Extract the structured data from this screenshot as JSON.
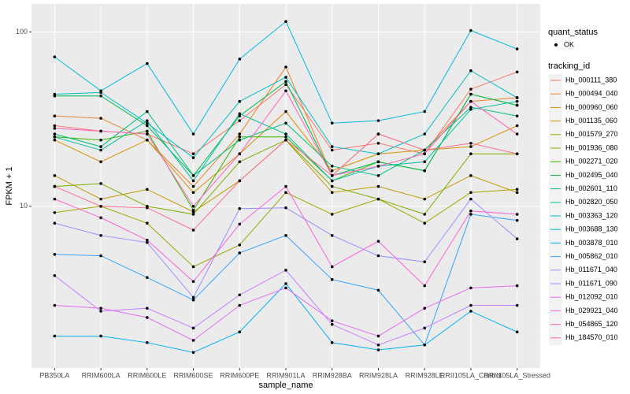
{
  "chart_data": {
    "type": "line",
    "x_label": "sample_name",
    "y_label": "FPKM + 1",
    "log_y": true,
    "grid": true,
    "categories": [
      "PB350LA",
      "RRIM600LA",
      "RRIM600LE",
      "RRIM600SE",
      "RRIM600PE",
      "RRIM901LA",
      "RRIM928BA",
      "RRIM928LA",
      "RRIM928LE",
      "RRII105LA_Control",
      "RRII105LA_Stressed"
    ],
    "ylim": [
      1.18,
      145
    ],
    "yticks": [
      10,
      100
    ],
    "shape_legend_title": "quant_status",
    "shape_legend_labels": [
      "OK"
    ],
    "legend_title": "tracking_id",
    "series": [
      {
        "name": "Hb_000111_380",
        "color": "#F8766D",
        "values": [
          29,
          27,
          26,
          20,
          31,
          50,
          21,
          23,
          20,
          47,
          59
        ]
      },
      {
        "name": "Hb_000494_040",
        "color": "#EA8331",
        "values": [
          33,
          32,
          24,
          13,
          26,
          63,
          15,
          26,
          21,
          40,
          42
        ]
      },
      {
        "name": "Hb_000960_060",
        "color": "#D89000",
        "values": [
          24,
          18,
          24,
          12,
          20,
          35,
          16,
          20,
          21,
          22,
          29
        ]
      },
      {
        "name": "Hb_001135_060",
        "color": "#C09B00",
        "values": [
          15,
          11,
          12.5,
          9.3,
          14,
          24,
          12,
          13,
          11,
          15,
          12
        ]
      },
      {
        "name": "Hb_001579_270",
        "color": "#A3A500",
        "values": [
          9.2,
          10,
          8,
          4.5,
          6,
          12,
          9,
          11,
          8,
          12,
          12.5
        ]
      },
      {
        "name": "Hb_001936_080",
        "color": "#7CAE00",
        "values": [
          13,
          13.5,
          10,
          9,
          18,
          24,
          13,
          11,
          9,
          20,
          20
        ]
      },
      {
        "name": "Hb_002271_020",
        "color": "#39B600",
        "values": [
          25,
          24,
          27,
          9.5,
          25,
          25,
          14,
          18,
          16,
          44,
          38
        ]
      },
      {
        "name": "Hb_002495_040",
        "color": "#00BB4E",
        "values": [
          43,
          43,
          29,
          15,
          33,
          52,
          15,
          18,
          16,
          44,
          38
        ]
      },
      {
        "name": "Hb_002601_110",
        "color": "#00BF7D",
        "values": [
          26,
          22,
          35,
          15,
          24,
          30,
          17,
          15,
          21,
          37,
          33
        ]
      },
      {
        "name": "Hb_002820_050",
        "color": "#00C1A3",
        "values": [
          25,
          21,
          31,
          14,
          34,
          26,
          14,
          17,
          18,
          36,
          40
        ]
      },
      {
        "name": "Hb_003363_120",
        "color": "#00BFC4",
        "values": [
          44,
          45,
          30,
          19,
          40,
          55,
          22,
          20,
          26,
          60,
          42
        ]
      },
      {
        "name": "Hb_003688_130",
        "color": "#00BAE0",
        "values": [
          72,
          46,
          66,
          26,
          70,
          115,
          30,
          31,
          35,
          102,
          80
        ]
      },
      {
        "name": "Hb_003878_010",
        "color": "#00B0F6",
        "values": [
          1.8,
          1.8,
          1.65,
          1.45,
          1.9,
          3.6,
          1.65,
          1.5,
          1.6,
          2.5,
          1.9
        ]
      },
      {
        "name": "Hb_005862_010",
        "color": "#35A2FF",
        "values": [
          5.3,
          5.2,
          3.9,
          2.9,
          5.4,
          6.8,
          3.8,
          3.3,
          1.6,
          9,
          8.3
        ]
      },
      {
        "name": "Hb_011671_040",
        "color": "#9590FF",
        "values": [
          8,
          6.8,
          6.2,
          3,
          9.7,
          9.8,
          6.8,
          5.2,
          4.8,
          11,
          6.5
        ]
      },
      {
        "name": "Hb_011671_090",
        "color": "#C77CFF",
        "values": [
          4,
          2.5,
          2.6,
          2,
          3.1,
          4.3,
          2.1,
          1.6,
          2,
          2.7,
          2.7
        ]
      },
      {
        "name": "Hb_012092_010",
        "color": "#E76BF3",
        "values": [
          2.7,
          2.6,
          2.3,
          1.7,
          2.7,
          3.4,
          2.2,
          1.8,
          2.6,
          3.4,
          3.5
        ]
      },
      {
        "name": "Hb_029921_040",
        "color": "#FA62DB",
        "values": [
          11,
          8.6,
          6.4,
          3.7,
          7.9,
          13,
          4.5,
          6.3,
          3.5,
          9.4,
          9
        ]
      },
      {
        "name": "Hb_054865_120",
        "color": "#FF62BC",
        "values": [
          28,
          27,
          26,
          10,
          20,
          46,
          15,
          17,
          20,
          40,
          26
        ]
      },
      {
        "name": "Hb_184570_010",
        "color": "#FF6C91",
        "values": [
          13,
          10,
          9.8,
          7.3,
          14,
          24,
          15,
          26,
          21,
          23,
          20
        ]
      }
    ]
  }
}
